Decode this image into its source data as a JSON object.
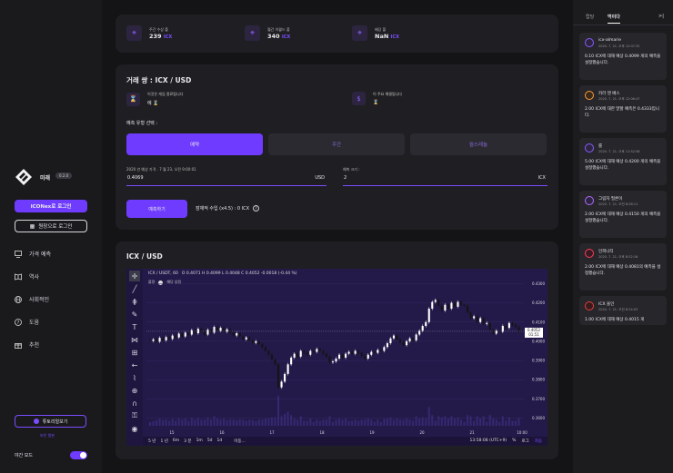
{
  "sidebar": {
    "brand": "미래",
    "brand_badge": "0.2.0",
    "login_iconex": "ICONex로 로그인",
    "login_ledger": "원장으로 로그인",
    "nav": [
      {
        "label": "가격 예측",
        "icon": "monitor-icon"
      },
      {
        "label": "역사",
        "icon": "book-icon"
      },
      {
        "label": "사회적인",
        "icon": "globe-icon"
      },
      {
        "label": "도움",
        "icon": "help-icon"
      },
      {
        "label": "추천",
        "icon": "gift-icon"
      }
    ],
    "tutorial": "튜토리얼보기",
    "view_more": "보인 원본",
    "night_mode": "야간 모드",
    "accent": "#6f3cff"
  },
  "stats": [
    {
      "label": "주간 수상 풀",
      "value": "239",
      "unit": "ICX"
    },
    {
      "label": "월간 이퀄드 풀",
      "value": "340",
      "unit": "ICX"
    },
    {
      "label": "배당 풀",
      "value": "NaN",
      "unit": "ICX"
    }
  ],
  "pair": {
    "title": "거래 쌍 : ICX / USD",
    "left_line1": "이것은 게임 종료됩니다",
    "left_line2": "에 ⌛",
    "right_line1": "이 주요 해결됩니다",
    "right_line2": "⌛",
    "select_label": "예측 유형 선택 :",
    "types": [
      "예약",
      "주간",
      "월스레놀"
    ],
    "date_label": "2020 년 예상 가격 . 7 월 23, 오전 9:00:01",
    "price_value": "0.4069",
    "price_unit": "USD",
    "size_label": "예측 크기 :",
    "size_value": "2",
    "size_unit": "ICX",
    "predict_button": "예측하기",
    "payout_text": "잠재적 수입 (x4.5) : 0 ICX"
  },
  "chart_section": {
    "title": "ICX / USD",
    "symbol": "ICX / USDT, 60",
    "ohlc": "O 0.4071 H 0.4099 L 0.4048 C 0.4052 -0.0018 (-0.44 %)",
    "volume_label": "볼량",
    "no_data": "해당 없음",
    "timeframes": [
      "5 년",
      "1 년",
      "6m",
      "3 분",
      "1m",
      "5d",
      "1d"
    ],
    "goto": "이동...",
    "clock": "13:58:08 (UTC+9)",
    "percent": "%",
    "log": "로그",
    "auto": "자동",
    "current_price": "0.4052",
    "countdown": "01:51"
  },
  "chart_data": {
    "type": "candlestick",
    "x_ticks": [
      "15",
      "16",
      "17",
      "18",
      "19",
      "20",
      "21",
      "10:00"
    ],
    "y_ticks": [
      "0.4300",
      "0.4200",
      "0.4100",
      "0.4000",
      "0.3900",
      "0.3800",
      "0.3700",
      "0.3600"
    ],
    "ylim": [
      0.356,
      0.434
    ],
    "closes": [
      0.4002,
      0.401,
      0.3998,
      0.4018,
      0.4005,
      0.4022,
      0.4012,
      0.403,
      0.402,
      0.404,
      0.4025,
      0.4045,
      0.4035,
      0.4058,
      0.4042,
      0.4065,
      0.405,
      0.4035,
      0.406,
      0.4045,
      0.4075,
      0.4055,
      0.407,
      0.405,
      0.4062,
      0.4045,
      0.403,
      0.4042,
      0.4025,
      0.401,
      0.402,
      0.4005,
      0.3992,
      0.4,
      0.3985,
      0.397,
      0.395,
      0.393,
      0.3905,
      0.388,
      0.376,
      0.379,
      0.383,
      0.388,
      0.3915,
      0.3935,
      0.392,
      0.395,
      0.394,
      0.393,
      0.395,
      0.3945,
      0.396,
      0.395,
      0.3935,
      0.392,
      0.389,
      0.3895,
      0.391,
      0.393,
      0.3915,
      0.3935,
      0.3945,
      0.3935,
      0.395,
      0.394,
      0.3925,
      0.391,
      0.393,
      0.3945,
      0.394,
      0.3955,
      0.395,
      0.397,
      0.399,
      0.4015,
      0.403,
      0.401,
      0.3995,
      0.398,
      0.4,
      0.4015,
      0.4005,
      0.4035,
      0.4055,
      0.408,
      0.41,
      0.417,
      0.4205,
      0.4215,
      0.4185,
      0.416,
      0.419,
      0.417,
      0.42,
      0.418,
      0.4205,
      0.419,
      0.4185,
      0.415,
      0.412,
      0.413,
      0.41,
      0.412,
      0.409,
      0.4095,
      0.406,
      0.404,
      0.4055,
      0.405,
      0.408,
      0.407,
      0.4095,
      0.4085,
      0.4075,
      0.4052
    ]
  },
  "feed": {
    "tabs": [
      "랍당",
      "먹이다"
    ],
    "collapse": ">|",
    "items": [
      {
        "name": "icx-almarie",
        "time": "2020. 7. 21. 오후 12:07:32",
        "text": "0.10 ICX에 대해 예상 0.4099 게의 예측을 설정했습니다.",
        "color": "#8a5cff"
      },
      {
        "name": "카라 텐 베스",
        "time": "2020. 7. 21. 오후 12:06:47",
        "text": "2.00 ICX에 대한 말할 예측은 0.4333입니다.",
        "color": "#ff9a3c"
      },
      {
        "name": "를",
        "time": "2020. 7. 21. 오후 11:52:58",
        "text": "5.00 ICX에 대해 예상 0.4200 게의 예측을 설정했습니다.",
        "color": "#8a5cff"
      },
      {
        "name": "그림자 필론이",
        "time": "2020. 7. 21. 오전 8:28:11",
        "text": "2.00 ICX에 대해 예상 0.4150 게의 예측을 설정했습니다.",
        "color": "#b06cff"
      },
      {
        "name": "인피니티",
        "time": "2020. 7. 21. 오후 8:32:16",
        "text": "2.00 ICX에 대해 예상 0.4081의 예측을 설정했습니다.",
        "color": "#ff3c5c"
      },
      {
        "name": "ICX 올인",
        "time": "2020. 7. 21. 오전 8:34:03",
        "text": "1.00 ICX에 대해 예상 0.4015 게",
        "color": "#e04040"
      }
    ]
  }
}
